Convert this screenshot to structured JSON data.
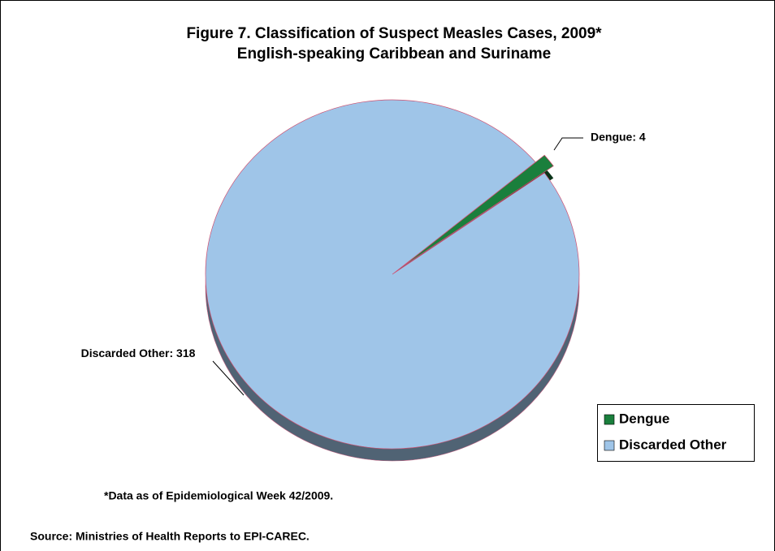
{
  "chart_data": {
    "type": "pie",
    "title": "Figure 7. Classification of Suspect Measles Cases, 2009*",
    "subtitle": "English-speaking Caribbean and Suriname",
    "categories": [
      "Dengue",
      "Discarded Other"
    ],
    "values": [
      4,
      318
    ],
    "value_labels": [
      "Dengue: 4",
      "Discarded Other: 318"
    ],
    "colors": [
      "#1a7f3c",
      "#9fc5e8"
    ],
    "legend": "right",
    "annotations": [
      "*Data as of Epidemiological Week 42/2009.",
      "Source:  Ministries of Health Reports to EPI-CAREC."
    ]
  }
}
